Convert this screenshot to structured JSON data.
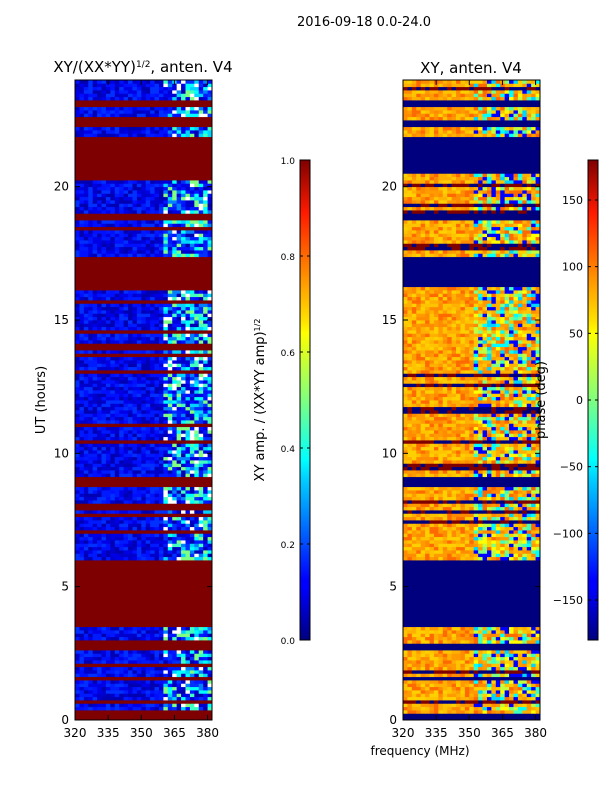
{
  "chart_data": {
    "suptitle": "2016-09-18 0.0-24.0",
    "shared_xlabel": "frequency (MHz)",
    "panels": [
      {
        "type": "heatmap",
        "title_main": "XY/(XX*YY)",
        "title_sup": "1/2",
        "title_tail": ", anten. V4",
        "ylabel": "UT (hours)",
        "xlim": [
          320,
          382
        ],
        "ylim": [
          0,
          24
        ],
        "xticks": [
          320,
          335,
          350,
          365,
          380
        ],
        "yticks": [
          0,
          5,
          10,
          15,
          20
        ],
        "saturated_bands_hours": [
          [
            0.0,
            0.2
          ],
          [
            1.4,
            1.6
          ],
          [
            2.6,
            2.8
          ],
          [
            3.4,
            5.9
          ],
          [
            8.7,
            9.1
          ],
          [
            16.2,
            17.3
          ],
          [
            18.7,
            19.0
          ],
          [
            20.5,
            21.8
          ],
          [
            22.2,
            22.4
          ],
          [
            23.0,
            23.2
          ]
        ],
        "colorbar": {
          "label_main": "XY amp. / (XX*YY amp)",
          "label_sup": "1/2",
          "range": [
            0.0,
            1.0
          ],
          "ticks": [
            "0.0",
            "0.2",
            "0.4",
            "0.6",
            "0.8",
            "1.0"
          ]
        }
      },
      {
        "type": "heatmap",
        "title_main": "XY, anten. V4",
        "ylabel": "",
        "xlim": [
          320,
          382
        ],
        "ylim": [
          0,
          24
        ],
        "xticks": [
          320,
          335,
          350,
          365,
          380
        ],
        "yticks": [
          0,
          5,
          10,
          15,
          20
        ],
        "flagged_bands_hours": [
          [
            0.0,
            0.2
          ],
          [
            1.4,
            1.6
          ],
          [
            2.6,
            2.8
          ],
          [
            3.4,
            5.9
          ],
          [
            8.7,
            9.1
          ],
          [
            16.2,
            17.3
          ],
          [
            18.7,
            19.0
          ],
          [
            20.5,
            21.8
          ],
          [
            22.2,
            22.4
          ],
          [
            23.0,
            23.2
          ]
        ],
        "colorbar": {
          "label_main": "phase (deg)",
          "range": [
            -180,
            180
          ],
          "ticks": [
            "−150",
            "−100",
            "−50",
            "0",
            "50",
            "100",
            "150"
          ]
        }
      }
    ]
  }
}
